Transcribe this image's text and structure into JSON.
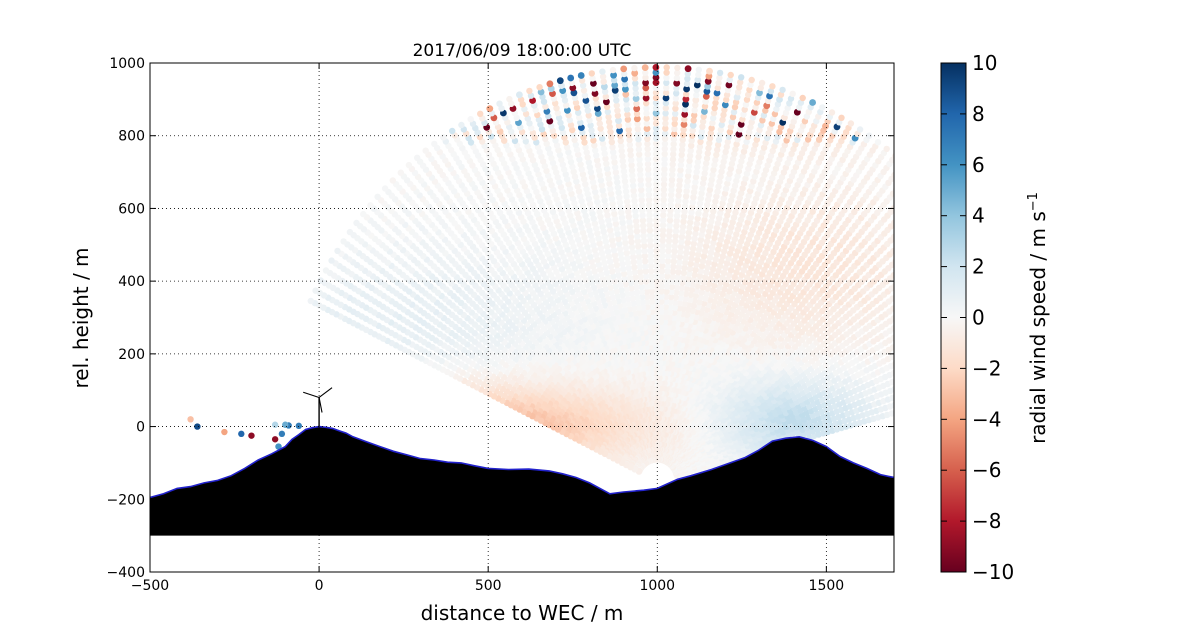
{
  "chart_data": {
    "type": "heatmap",
    "title": "2017/06/09 18:00:00 UTC",
    "xlabel": "distance to WEC / m",
    "ylabel": "rel. height / m",
    "xlim": [
      -500,
      1700
    ],
    "ylim": [
      -400,
      1000
    ],
    "xticks": [
      -500,
      0,
      500,
      1000,
      1500
    ],
    "yticks": [
      -400,
      -200,
      0,
      200,
      400,
      600,
      800,
      1000
    ],
    "grid": "dotted",
    "scan": {
      "lidar_x": 1000,
      "lidar_y": -150,
      "az_min_deg": 15,
      "az_max_deg": 155,
      "max_range": 1150
    },
    "terrain": {
      "x": [
        -500,
        -460,
        -420,
        -380,
        -340,
        -300,
        -260,
        -220,
        -180,
        -140,
        -100,
        -80,
        -60,
        -40,
        -20,
        0,
        20,
        40,
        60,
        80,
        100,
        140,
        180,
        220,
        260,
        300,
        340,
        380,
        420,
        460,
        500,
        560,
        620,
        680,
        720,
        760,
        800,
        860,
        900,
        960,
        1000,
        1060,
        1100,
        1160,
        1200,
        1260,
        1300,
        1340,
        1380,
        1420,
        1460,
        1500,
        1540,
        1580,
        1620,
        1660,
        1700
      ],
      "y": [
        -195,
        -185,
        -170,
        -165,
        -155,
        -148,
        -135,
        -115,
        -92,
        -75,
        -55,
        -35,
        -22,
        -8,
        -3,
        0,
        -2,
        -5,
        -12,
        -18,
        -28,
        -42,
        -55,
        -68,
        -78,
        -88,
        -92,
        -98,
        -100,
        -108,
        -115,
        -118,
        -117,
        -122,
        -130,
        -140,
        -155,
        -185,
        -180,
        -175,
        -170,
        -145,
        -135,
        -118,
        -105,
        -85,
        -65,
        -40,
        -32,
        -28,
        -38,
        -55,
        -82,
        -100,
        -115,
        -132,
        -140
      ],
      "bottom": -300
    },
    "turbine": {
      "x": 0,
      "hub_height": 80,
      "blade_length": 50
    },
    "colorbar": {
      "label": "radial wind speed / m s",
      "label_superscript": "−1",
      "range": [
        -10,
        10
      ],
      "ticks": [
        10,
        8,
        6,
        4,
        2,
        0,
        -2,
        -4,
        -6,
        -8,
        -10
      ],
      "tick_labels": [
        "10",
        "8",
        "6",
        "4",
        "2",
        "0",
        "−2",
        "−4",
        "−6",
        "−8",
        "−10"
      ],
      "colormap": "RdBu",
      "colors": [
        "#67001f",
        "#b2182b",
        "#d6604d",
        "#f4a582",
        "#fddbc7",
        "#f7f7f7",
        "#d1e5f0",
        "#92c5de",
        "#4393c3",
        "#2166ac",
        "#053061"
      ]
    },
    "field": {
      "description_values": "radial wind speed by layer",
      "near_ground_left": -3.5,
      "near_ground_right": 2.5,
      "mid_left": 0.8,
      "mid_right": -1.2,
      "upper_noise_threshold": 780
    }
  }
}
